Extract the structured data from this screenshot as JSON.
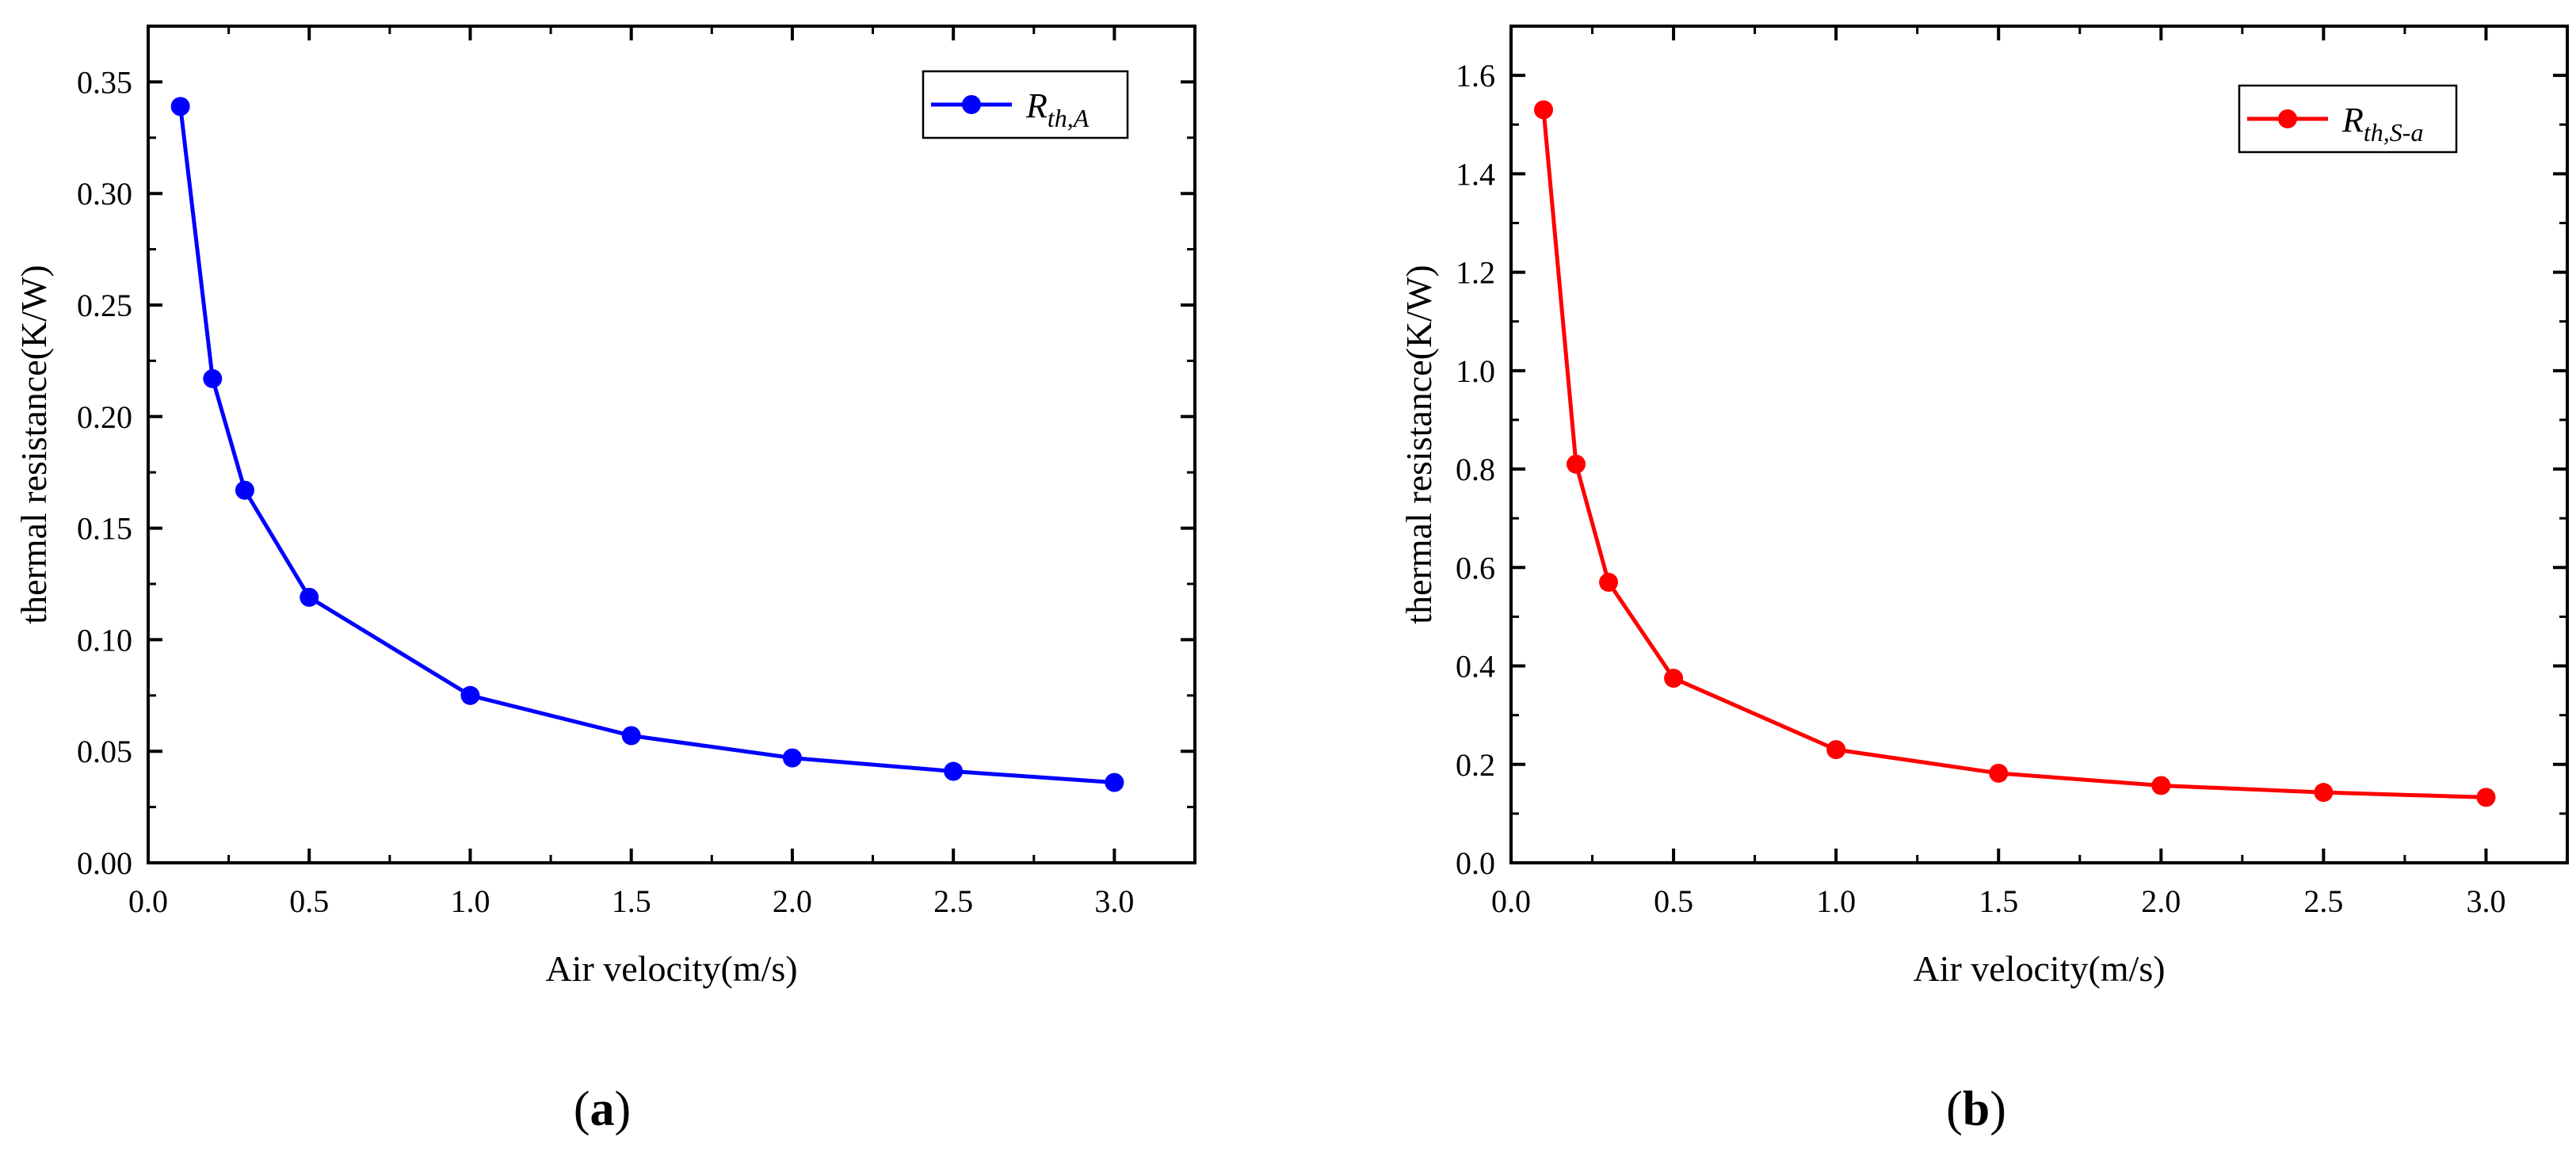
{
  "chart_data": [
    {
      "type": "line",
      "panel_label": "a",
      "title": "",
      "xlabel": "Air velocity(m/s)",
      "ylabel": "thermal resistance(K/W)",
      "xlim": [
        0.0,
        3.25
      ],
      "ylim": [
        0.0,
        0.375
      ],
      "xticks": [
        0.0,
        0.5,
        1.0,
        1.5,
        2.0,
        2.5,
        3.0
      ],
      "xtick_labels": [
        "0.0",
        "0.5",
        "1.0",
        "1.5",
        "2.0",
        "2.5",
        "3.0"
      ],
      "yticks": [
        0.0,
        0.05,
        0.1,
        0.15,
        0.2,
        0.25,
        0.3,
        0.35
      ],
      "ytick_labels": [
        "0.00",
        "0.05",
        "0.10",
        "0.15",
        "0.20",
        "0.25",
        "0.30",
        "0.35"
      ],
      "grid": false,
      "legend_position": "top-right",
      "series": [
        {
          "name": "R",
          "name_sub": "th,A",
          "color": "#0000ff",
          "x": [
            0.1,
            0.2,
            0.3,
            0.5,
            1.0,
            1.5,
            2.0,
            2.5,
            3.0
          ],
          "values": [
            0.339,
            0.217,
            0.167,
            0.119,
            0.075,
            0.057,
            0.047,
            0.041,
            0.036
          ]
        }
      ]
    },
    {
      "type": "line",
      "panel_label": "b",
      "title": "",
      "xlabel": "Air velocity(m/s)",
      "ylabel": "thermal resistance(K/W)",
      "xlim": [
        0.0,
        3.25
      ],
      "ylim": [
        0.0,
        1.7
      ],
      "xticks": [
        0.0,
        0.5,
        1.0,
        1.5,
        2.0,
        2.5,
        3.0
      ],
      "xtick_labels": [
        "0.0",
        "0.5",
        "1.0",
        "1.5",
        "2.0",
        "2.5",
        "3.0"
      ],
      "yticks": [
        0.0,
        0.2,
        0.4,
        0.6,
        0.8,
        1.0,
        1.2,
        1.4,
        1.6
      ],
      "ytick_labels": [
        "0.0",
        "0.2",
        "0.4",
        "0.6",
        "0.8",
        "1.0",
        "1.2",
        "1.4",
        "1.6"
      ],
      "grid": false,
      "legend_position": "top-right",
      "series": [
        {
          "name": "R",
          "name_sub": "th,S-a",
          "color": "#ff0000",
          "x": [
            0.1,
            0.2,
            0.3,
            0.5,
            1.0,
            1.5,
            2.0,
            2.5,
            3.0
          ],
          "values": [
            1.53,
            0.81,
            0.57,
            0.375,
            0.23,
            0.182,
            0.157,
            0.143,
            0.133
          ]
        }
      ]
    }
  ]
}
